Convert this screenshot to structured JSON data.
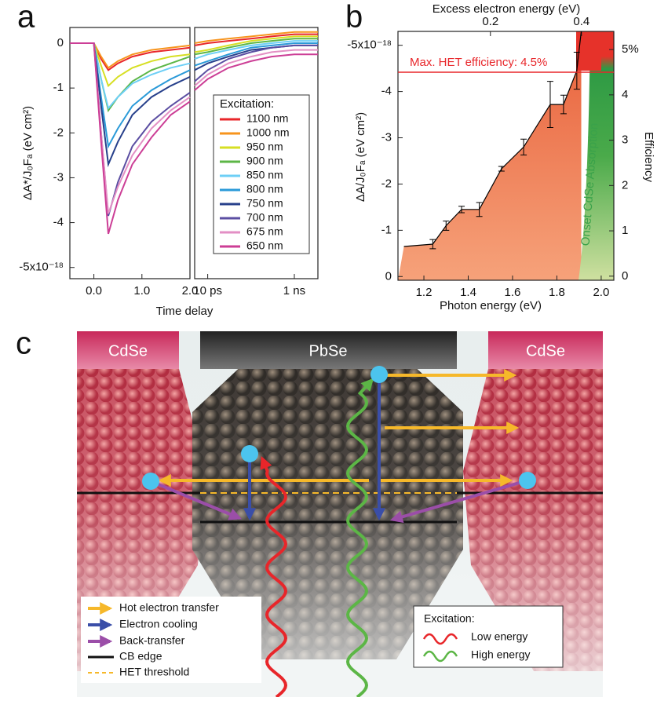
{
  "chart_data": [
    {
      "type": "line",
      "panel_label": "a",
      "x_label": "Time delay",
      "y_label": "ΔA*/J₀Fₐ (eV cm²)",
      "legend_title": "Excitation:",
      "xlim": [
        -0.5,
        2.0
      ],
      "ylim": [
        -5.25,
        0.35
      ],
      "xticks": [
        {
          "value": 0,
          "label": "0.0"
        },
        {
          "value": 1,
          "label": "1.0"
        },
        {
          "value": 2,
          "label": "2.0"
        }
      ],
      "yticks": [
        0,
        -1,
        -2,
        -3,
        -4,
        {
          "value": -5,
          "label": "-5x10⁻¹⁸"
        }
      ],
      "x": [
        -0.5,
        0,
        0.15,
        0.3,
        0.5,
        0.8,
        1.2,
        1.6,
        2.0
      ],
      "series": [
        {
          "name": "1100 nm",
          "color": "#e8262a",
          "values": [
            0,
            0,
            -0.35,
            -0.6,
            -0.45,
            -0.3,
            -0.2,
            -0.15,
            -0.1
          ]
        },
        {
          "name": "1000 nm",
          "color": "#f7941d",
          "values": [
            0,
            0,
            -0.3,
            -0.55,
            -0.4,
            -0.25,
            -0.15,
            -0.1,
            -0.05
          ]
        },
        {
          "name": "950 nm",
          "color": "#d7df23",
          "values": [
            0,
            0,
            -0.5,
            -0.95,
            -0.75,
            -0.55,
            -0.4,
            -0.3,
            -0.25
          ]
        },
        {
          "name": "900 nm",
          "color": "#5cb646",
          "values": [
            0,
            0,
            -0.8,
            -1.5,
            -1.2,
            -0.85,
            -0.6,
            -0.45,
            -0.3
          ]
        },
        {
          "name": "850 nm",
          "color": "#6dcff6",
          "values": [
            0,
            0,
            -0.8,
            -1.45,
            -1.2,
            -0.9,
            -0.7,
            -0.55,
            -0.45
          ]
        },
        {
          "name": "800 nm",
          "color": "#2a9ad8",
          "values": [
            0,
            0,
            -1.2,
            -2.3,
            -1.9,
            -1.4,
            -1.05,
            -0.8,
            -0.6
          ]
        },
        {
          "name": "750 nm",
          "color": "#27408b",
          "values": [
            0,
            0,
            -1.4,
            -2.7,
            -2.2,
            -1.6,
            -1.2,
            -0.95,
            -0.75
          ]
        },
        {
          "name": "700 nm",
          "color": "#5b4ea2",
          "values": [
            0,
            0,
            -2.0,
            -3.85,
            -3.1,
            -2.3,
            -1.75,
            -1.4,
            -1.1
          ]
        },
        {
          "name": "675 nm",
          "color": "#e38fc4",
          "values": [
            0,
            0,
            -2.0,
            -3.8,
            -3.2,
            -2.5,
            -1.9,
            -1.5,
            -1.2
          ]
        },
        {
          "name": "650 nm",
          "color": "#cc3e96",
          "values": [
            0,
            0,
            -2.2,
            -4.25,
            -3.5,
            -2.7,
            -2.1,
            -1.6,
            -1.3
          ]
        }
      ]
    },
    {
      "type": "line",
      "log_x": true,
      "xlim": [
        5,
        3500
      ],
      "ylim": [
        -5.25,
        0.35
      ],
      "xticks": [
        {
          "value": 10,
          "label": "10 ps"
        },
        {
          "value": 1000,
          "label": "1 ns"
        }
      ],
      "x": [
        5,
        10,
        30,
        100,
        300,
        1000,
        3500
      ],
      "series": [
        {
          "color": "#e8262a",
          "values": [
            -0.05,
            0,
            0.05,
            0.1,
            0.15,
            0.2,
            0.2
          ]
        },
        {
          "color": "#f7941d",
          "values": [
            0,
            0.05,
            0.1,
            0.15,
            0.2,
            0.25,
            0.25
          ]
        },
        {
          "color": "#d7df23",
          "values": [
            -0.2,
            -0.15,
            -0.05,
            0.05,
            0.1,
            0.15,
            0.15
          ]
        },
        {
          "color": "#5cb646",
          "values": [
            -0.25,
            -0.2,
            -0.1,
            0,
            0.05,
            0.1,
            0.1
          ]
        },
        {
          "color": "#6dcff6",
          "values": [
            -0.35,
            -0.25,
            -0.15,
            -0.05,
            0,
            0.05,
            0.05
          ]
        },
        {
          "color": "#2a9ad8",
          "values": [
            -0.5,
            -0.4,
            -0.25,
            -0.1,
            -0.05,
            0,
            0
          ]
        },
        {
          "color": "#27408b",
          "values": [
            -0.6,
            -0.45,
            -0.3,
            -0.15,
            -0.1,
            -0.05,
            -0.05
          ]
        },
        {
          "color": "#5b4ea2",
          "values": [
            -0.85,
            -0.6,
            -0.35,
            -0.2,
            -0.1,
            -0.05,
            -0.05
          ]
        },
        {
          "color": "#e38fc4",
          "values": [
            -0.95,
            -0.7,
            -0.45,
            -0.3,
            -0.2,
            -0.15,
            -0.15
          ]
        },
        {
          "color": "#cc3e96",
          "values": [
            -1.05,
            -0.8,
            -0.55,
            -0.4,
            -0.3,
            -0.25,
            -0.25
          ]
        }
      ]
    },
    {
      "type": "line",
      "panel_label": "b",
      "x_label": "Photon energy (eV)",
      "x2_label": "Excess electron energy (eV)",
      "y_label": "ΔA/J₀Fₐ (eV cm²)",
      "y2_label": "Efficiency",
      "annotation": "Onset CdSe Absorption",
      "xlim": [
        1.083,
        2.057
      ],
      "x2lim": [
        -0.003,
        0.471
      ],
      "ylim": [
        0.08,
        -5.3
      ],
      "y2lim": [
        -0.09,
        5.4
      ],
      "xticks": [
        1.2,
        1.4,
        1.6,
        1.8,
        {
          "value": 2,
          "label": "2.0"
        }
      ],
      "x2ticks": [
        0.2,
        0.4
      ],
      "yticks": [
        0,
        -1,
        -2,
        -3,
        -4,
        {
          "value": -5,
          "label": "-5x10⁻¹⁸"
        }
      ],
      "y2ticks": [
        0,
        1,
        2,
        3,
        4,
        {
          "value": 5,
          "label": "5%"
        }
      ],
      "hline": {
        "axis": "y2",
        "value": 4.5,
        "label": "Max. HET efficiency: 4.5%",
        "color": "#e8262a"
      },
      "x": [
        1.11,
        1.24,
        1.3,
        1.37,
        1.45,
        1.55,
        1.65,
        1.77,
        1.83,
        1.89,
        1.91
      ],
      "series": [
        {
          "color": "#000000",
          "values": [
            -0.65,
            -0.7,
            -1.1,
            -1.45,
            -1.45,
            -2.33,
            -2.8,
            -3.72,
            -3.72,
            -4.45,
            -5.3
          ],
          "err": [
            null,
            0.1,
            0.1,
            0.07,
            0.15,
            0.05,
            0.17,
            0.5,
            0.2,
            0.4,
            null
          ]
        }
      ]
    }
  ],
  "diagram": {
    "panel_label": "c",
    "left_crystal": "CdSe",
    "center_crystal": "PbSe",
    "right_crystal": "CdSe",
    "legend": [
      "Hot electron transfer",
      "Electron cooling",
      "Back-transfer",
      "CB edge",
      "HET threshold"
    ],
    "excitation_legend": {
      "title": "Excitation:",
      "items": [
        "Low energy",
        "High energy"
      ]
    }
  }
}
